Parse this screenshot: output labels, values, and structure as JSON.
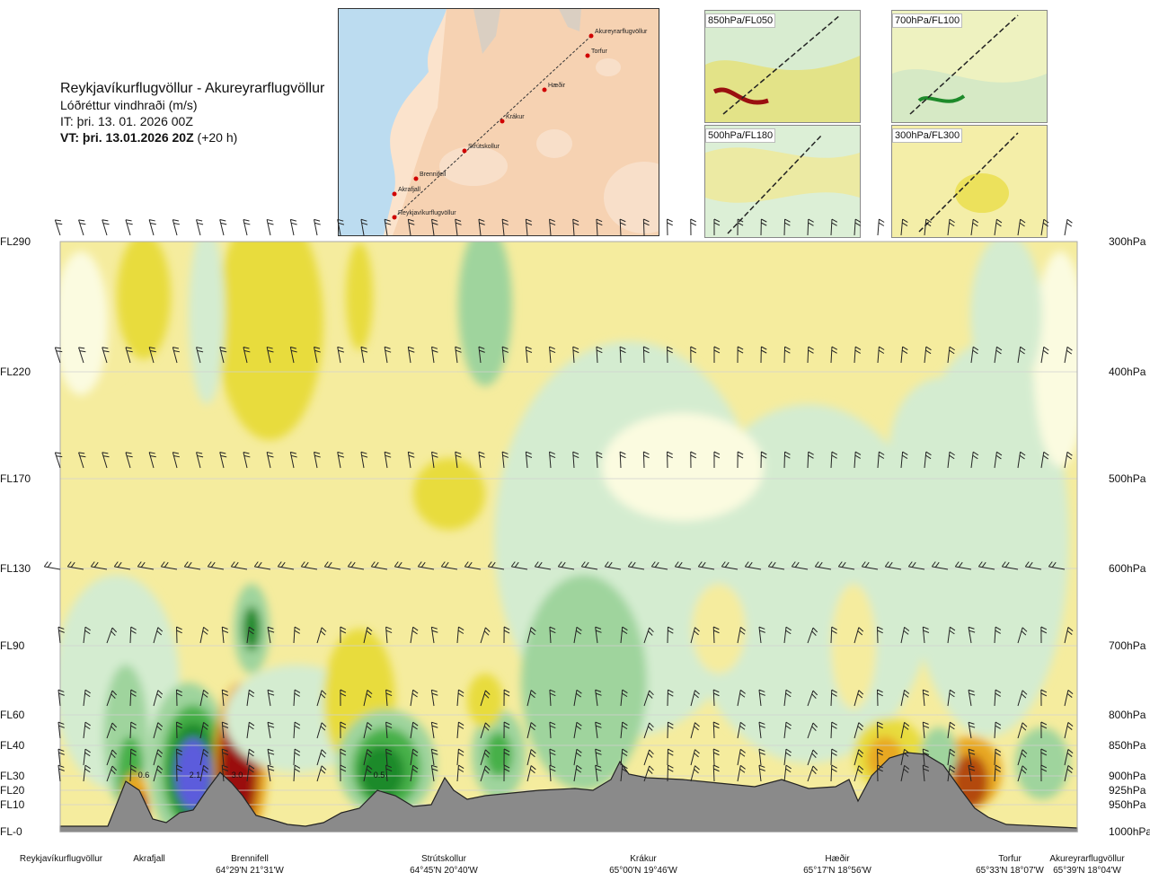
{
  "header": {
    "title": "Reykjavíkurflugvöllur - Akureyrarflugvöllur",
    "subtitle": "Lóðréttur vindhraði (m/s)",
    "issue_time": "IT: þri. 13. 01. 2026 00Z",
    "valid_label": "VT: þri. 13.01.2026 20Z",
    "valid_offset": "(+20 h)"
  },
  "route_map": {
    "waypoints": [
      "Akureyrarflugvöllur",
      "Torfur",
      "Hæðir",
      "Krákur",
      "Strútskollur",
      "Brennifell",
      "Akrafjall",
      "Reykjavíkurflugvöllur"
    ]
  },
  "mini_maps": [
    {
      "label": "850hPa/FL050"
    },
    {
      "label": "700hPa/FL100"
    },
    {
      "label": "500hPa/FL180"
    },
    {
      "label": "300hPa/FL300"
    }
  ],
  "levels": [
    {
      "fl": "FL290",
      "hpa": "300hPa"
    },
    {
      "fl": "FL220",
      "hpa": "400hPa"
    },
    {
      "fl": "FL170",
      "hpa": "500hPa"
    },
    {
      "fl": "FL130",
      "hpa": "600hPa"
    },
    {
      "fl": "FL90",
      "hpa": "700hPa"
    },
    {
      "fl": "FL60",
      "hpa": "800hPa"
    },
    {
      "fl": "FL40",
      "hpa": "850hPa"
    },
    {
      "fl": "FL30",
      "hpa": "900hPa"
    },
    {
      "fl": "FL20",
      "hpa": "925hPa"
    },
    {
      "fl": "FL10",
      "hpa": "950hPa"
    },
    {
      "fl": "FL-0",
      "hpa": "1000hPa"
    }
  ],
  "bottom_labels": [
    {
      "name": "Reykjavíkurflugvöllur",
      "coord": ""
    },
    {
      "name": "Akrafjall",
      "coord": ""
    },
    {
      "name": "Brennifell",
      "coord": "64°29'N 21°31'W"
    },
    {
      "name": "Strútskollur",
      "coord": "64°45'N 20°40'W"
    },
    {
      "name": "Krákur",
      "coord": "65°00'N 19°46'W"
    },
    {
      "name": "Hæðir",
      "coord": "65°17'N 18°56'W"
    },
    {
      "name": "Torfur",
      "coord": "65°33'N 18°07'W"
    },
    {
      "name": "Akureyrarflugvöllur",
      "coord": "65°39'N 18°04'W"
    }
  ],
  "chart_data": {
    "type": "heatmap",
    "title": "Lóðréttur vindhraði (m/s)",
    "y_levels_hpa": [
      300,
      400,
      500,
      600,
      700,
      800,
      850,
      900,
      925,
      950,
      1000
    ],
    "data_labels": [
      {
        "value": "0.6",
        "near": "Akrafjall",
        "level_hpa": 900
      },
      {
        "value": "2.1",
        "near": "Brennifell",
        "level_hpa": 900
      },
      {
        "value": "3.0",
        "near": "Brennifell",
        "level_hpa": 900
      },
      {
        "value": "0.5",
        "near": "Strútskollur",
        "level_hpa": 900
      }
    ],
    "colors": {
      "strong_up": "#5b5bdc",
      "up_3": "#1e8a2a",
      "up_2": "#46b04a",
      "up_1": "#9fd49d",
      "up_0": "#d4ecd0",
      "neutral": "#fbfbe0",
      "down_0": "#f5ec9e",
      "down_1": "#e8dc3c",
      "down_2": "#e8a820",
      "down_3": "#b34a10",
      "strong_down": "#9a1010",
      "terrain": "#8a8a8a"
    }
  }
}
